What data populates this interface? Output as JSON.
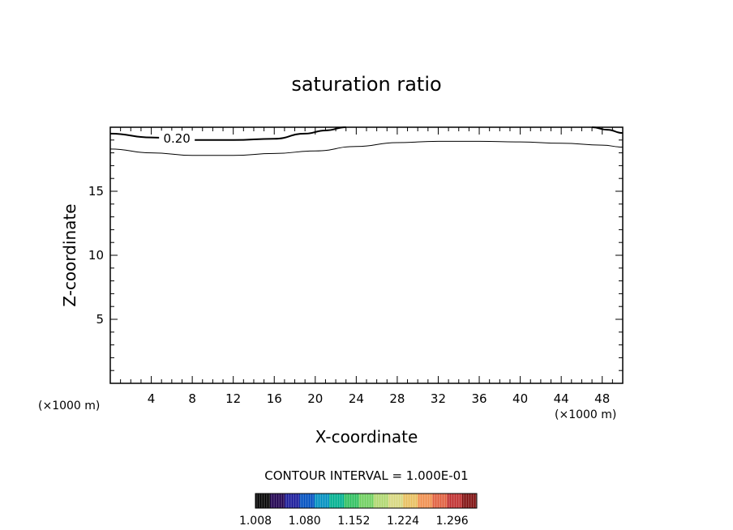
{
  "chart_data": {
    "type": "contour",
    "title": "saturation ratio",
    "xlabel": "X-coordinate",
    "ylabel": "Z-coordinate",
    "x_unit": "(×1000 m)",
    "xlim": [
      0,
      50
    ],
    "ylim": [
      0,
      20
    ],
    "x_ticks": [
      4,
      8,
      12,
      16,
      20,
      24,
      28,
      32,
      36,
      40,
      44,
      48
    ],
    "y_ticks": [
      5,
      10,
      15
    ],
    "contours": [
      {
        "level": "0.20",
        "label": "0.20",
        "style": "thick",
        "segments": [
          [
            [
              0,
              19.5
            ],
            [
              4,
              19.2
            ],
            [
              8,
              19.0
            ],
            [
              12,
              19.0
            ],
            [
              16,
              19.1
            ],
            [
              19,
              19.5
            ],
            [
              21,
              19.75
            ],
            [
              23,
              20.0
            ]
          ],
          [
            [
              47,
              20.0
            ],
            [
              48.5,
              19.8
            ],
            [
              50,
              19.55
            ]
          ]
        ]
      },
      {
        "level": "",
        "label": "",
        "style": "thin",
        "segments": [
          [
            [
              0,
              18.3
            ],
            [
              4,
              18.0
            ],
            [
              8,
              17.8
            ],
            [
              12,
              17.8
            ],
            [
              16,
              17.95
            ],
            [
              20,
              18.15
            ],
            [
              24,
              18.5
            ],
            [
              28,
              18.8
            ],
            [
              32,
              18.9
            ],
            [
              36,
              18.9
            ],
            [
              40,
              18.85
            ],
            [
              44,
              18.75
            ],
            [
              48,
              18.6
            ],
            [
              50,
              18.45
            ]
          ]
        ]
      }
    ],
    "contour_interval_text": "CONTOUR INTERVAL = 1.000E-01",
    "colorbar": {
      "min": 1.008,
      "max": 1.332,
      "tick_labels": [
        "1.008",
        "1.080",
        "1.152",
        "1.224",
        "1.296"
      ],
      "colors": [
        "#000000",
        "#200050",
        "#1a1a9a",
        "#0050c0",
        "#0090c0",
        "#00b090",
        "#30c060",
        "#70d060",
        "#b0d870",
        "#d8d880",
        "#e8c060",
        "#f09050",
        "#e06040",
        "#c03030",
        "#801010"
      ]
    }
  }
}
